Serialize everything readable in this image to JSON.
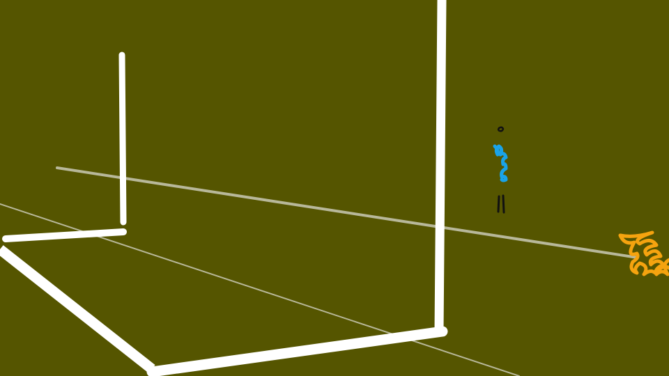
{
  "scene": {
    "background_color": "#555500",
    "line_color": "#ffffff",
    "far_line_color": "#b8b89a",
    "figures": [
      {
        "name": "player-blue",
        "kit_color": "#1aa3e8",
        "detail_color": "#111111"
      },
      {
        "name": "player-orange",
        "kit_color": "#f5a30f"
      }
    ]
  }
}
